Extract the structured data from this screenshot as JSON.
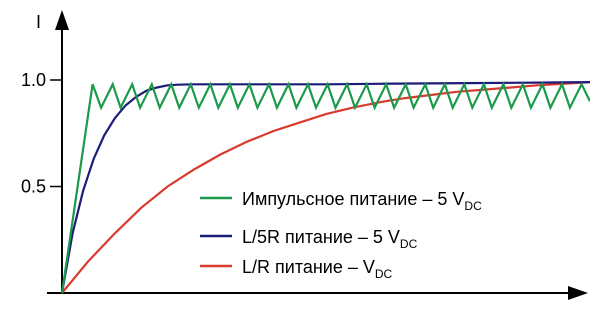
{
  "chart_data": {
    "type": "line",
    "ylabel": "I",
    "xlabel": "",
    "ylim": [
      0,
      1.18
    ],
    "xlim": [
      0,
      1
    ],
    "yticks": [
      {
        "value": 0.5,
        "label": "0.5"
      },
      {
        "value": 1.0,
        "label": "1.0"
      }
    ],
    "grid": false,
    "legend_position": "lower-right",
    "series": [
      {
        "name": "Импульсное питание – 5  V",
        "name_sub": "DC",
        "color": "#1a9a4a",
        "x": [
          0,
          0.058,
          0.074,
          0.096,
          0.111,
          0.133,
          0.148,
          0.17,
          0.185,
          0.207,
          0.222,
          0.244,
          0.259,
          0.281,
          0.296,
          0.318,
          0.333,
          0.355,
          0.37,
          0.392,
          0.407,
          0.429,
          0.444,
          0.466,
          0.481,
          0.503,
          0.518,
          0.54,
          0.555,
          0.577,
          0.592,
          0.614,
          0.629,
          0.651,
          0.666,
          0.688,
          0.703,
          0.725,
          0.74,
          0.762,
          0.777,
          0.799,
          0.814,
          0.836,
          0.851,
          0.873,
          0.888,
          0.91,
          0.925,
          0.947,
          0.962,
          0.984,
          1.0
        ],
        "y": [
          0,
          0.98,
          0.87,
          0.98,
          0.87,
          0.98,
          0.87,
          0.98,
          0.87,
          0.98,
          0.87,
          0.98,
          0.87,
          0.98,
          0.87,
          0.98,
          0.87,
          0.98,
          0.87,
          0.98,
          0.87,
          0.98,
          0.87,
          0.98,
          0.87,
          0.98,
          0.87,
          0.98,
          0.87,
          0.98,
          0.87,
          0.98,
          0.87,
          0.98,
          0.87,
          0.98,
          0.87,
          0.98,
          0.87,
          0.98,
          0.87,
          0.98,
          0.87,
          0.98,
          0.87,
          0.98,
          0.87,
          0.98,
          0.87,
          0.98,
          0.87,
          0.98,
          0.9
        ]
      },
      {
        "name": "L/5R питание – 5  V",
        "name_sub": "DC",
        "color": "#1c1c7a",
        "x": [
          0,
          0.02,
          0.04,
          0.06,
          0.08,
          0.1,
          0.12,
          0.14,
          0.16,
          0.18,
          0.2,
          0.22,
          0.25,
          0.3,
          0.4,
          0.5,
          0.6,
          0.7,
          0.8,
          0.9,
          1.0
        ],
        "y": [
          0,
          0.28,
          0.48,
          0.63,
          0.74,
          0.82,
          0.88,
          0.92,
          0.95,
          0.965,
          0.975,
          0.978,
          0.98,
          0.98,
          0.98,
          0.98,
          0.982,
          0.984,
          0.986,
          0.988,
          0.99
        ]
      },
      {
        "name": "L/R питание – V",
        "name_sub": "DC",
        "color": "#d93a2e",
        "x": [
          0,
          0.05,
          0.1,
          0.15,
          0.2,
          0.25,
          0.3,
          0.35,
          0.4,
          0.45,
          0.5,
          0.55,
          0.6,
          0.65,
          0.7,
          0.75,
          0.8,
          0.85,
          0.9,
          0.95,
          1.0
        ],
        "y": [
          0,
          0.15,
          0.28,
          0.4,
          0.5,
          0.58,
          0.65,
          0.71,
          0.76,
          0.8,
          0.84,
          0.87,
          0.895,
          0.915,
          0.93,
          0.945,
          0.955,
          0.965,
          0.975,
          0.982,
          0.99
        ]
      }
    ]
  }
}
